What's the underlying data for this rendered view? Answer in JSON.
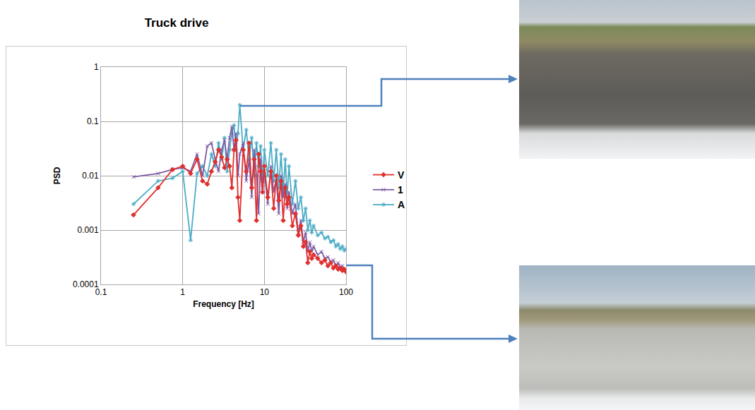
{
  "chart_data": {
    "type": "line",
    "title": "Truck drive",
    "x_label": "Frequency [Hz]",
    "y_label": "PSD",
    "x": [
      0.25,
      0.5,
      0.75,
      1,
      1.25,
      1.5,
      1.75,
      2,
      2.25,
      2.5,
      2.75,
      3,
      3.25,
      3.5,
      3.75,
      4,
      4.25,
      4.5,
      4.75,
      5,
      5.5,
      6,
      6.5,
      7,
      7.5,
      8,
      8.5,
      9,
      9.5,
      10,
      11,
      12,
      13,
      14,
      15,
      16,
      17,
      18,
      19,
      20,
      22,
      24,
      26,
      28,
      30,
      32,
      34,
      36,
      38,
      40,
      45,
      50,
      55,
      60,
      65,
      70,
      75,
      80,
      85,
      90,
      95,
      100
    ],
    "series": [
      {
        "name": "V",
        "color": "#e0302e",
        "marker": "diamond",
        "values": [
          0.0019,
          0.006,
          0.013,
          0.015,
          0.011,
          0.02,
          0.008,
          0.007,
          0.012,
          0.018,
          0.03,
          0.022,
          0.014,
          0.02,
          0.015,
          0.006,
          0.03,
          0.045,
          0.004,
          0.0015,
          0.03,
          0.012,
          0.04,
          0.006,
          0.02,
          0.0015,
          0.025,
          0.012,
          0.005,
          0.015,
          0.004,
          0.012,
          0.0025,
          0.01,
          0.0035,
          0.008,
          0.0015,
          0.006,
          0.003,
          0.004,
          0.0012,
          0.002,
          0.0008,
          0.0012,
          0.0005,
          0.0006,
          0.00025,
          0.0004,
          0.0003,
          0.00035,
          0.0003,
          0.00025,
          0.00028,
          0.00022,
          0.00025,
          0.0002,
          0.00022,
          0.00019,
          0.0002,
          0.00018,
          0.00019,
          0.00017
        ]
      },
      {
        "name": "1",
        "color": "#7d5ba6",
        "marker": "x",
        "values": [
          0.0095,
          0.011,
          0.013,
          0.014,
          0.012,
          0.025,
          0.01,
          0.035,
          0.04,
          0.02,
          0.012,
          0.03,
          0.045,
          0.02,
          0.05,
          0.08,
          0.03,
          0.06,
          0.01,
          0.025,
          0.04,
          0.008,
          0.02,
          0.004,
          0.03,
          0.01,
          0.002,
          0.02,
          0.006,
          0.012,
          0.003,
          0.015,
          0.005,
          0.009,
          0.002,
          0.01,
          0.004,
          0.007,
          0.0025,
          0.005,
          0.002,
          0.003,
          0.0009,
          0.0015,
          0.0006,
          0.0009,
          0.0004,
          0.0006,
          0.0004,
          0.0005,
          0.00035,
          0.0004,
          0.0003,
          0.00032,
          0.00026,
          0.00028,
          0.00022,
          0.00025,
          0.0002,
          0.00022,
          0.00018,
          0.00019
        ]
      },
      {
        "name": "A",
        "color": "#4bacc6",
        "marker": "asterisk",
        "values": [
          0.003,
          0.008,
          0.009,
          0.012,
          0.00065,
          0.011,
          0.015,
          0.01,
          0.025,
          0.015,
          0.04,
          0.02,
          0.05,
          0.012,
          0.03,
          0.06,
          0.085,
          0.03,
          0.06,
          0.2,
          0.03,
          0.07,
          0.02,
          0.05,
          0.01,
          0.04,
          0.015,
          0.035,
          0.008,
          0.03,
          0.01,
          0.04,
          0.008,
          0.03,
          0.006,
          0.025,
          0.005,
          0.02,
          0.004,
          0.015,
          0.003,
          0.008,
          0.0025,
          0.004,
          0.0015,
          0.0025,
          0.001,
          0.0015,
          0.0009,
          0.0012,
          0.0008,
          0.0009,
          0.0007,
          0.00075,
          0.0006,
          0.00065,
          0.0005,
          0.00055,
          0.00045,
          0.0005,
          0.00042,
          0.00045
        ]
      }
    ],
    "xlim": [
      0.1,
      100
    ],
    "ylim": [
      0.0001,
      1
    ],
    "xticks": [
      0.1,
      1,
      10,
      100
    ],
    "yticks": [
      0.0001,
      0.001,
      0.01,
      0.1,
      1
    ],
    "log": true,
    "grid": true,
    "legend": "right"
  }
}
